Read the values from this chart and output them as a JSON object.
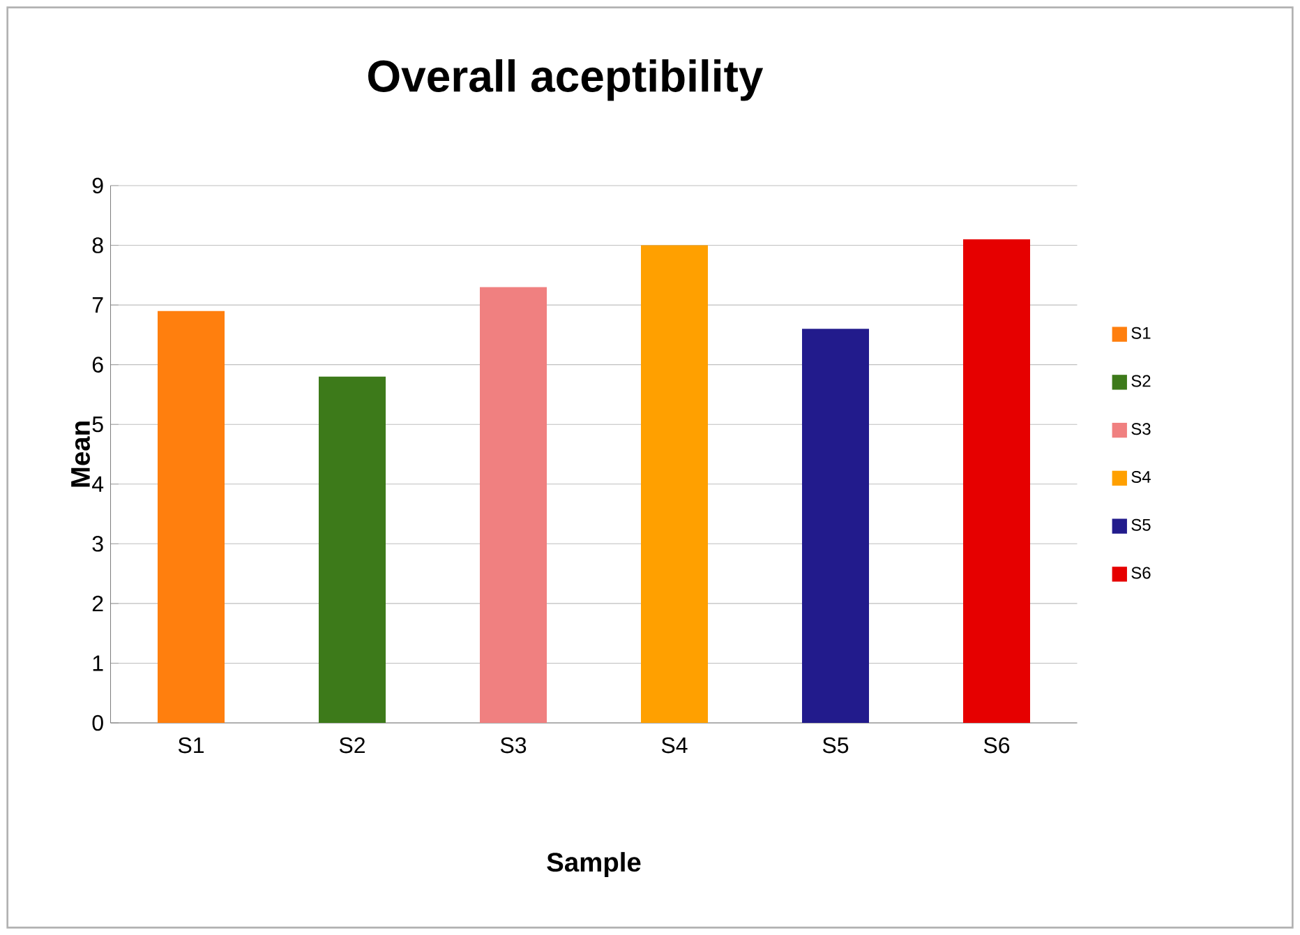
{
  "chart_data": {
    "type": "bar",
    "title": "Overall aceptibility",
    "xlabel": "Sample",
    "ylabel": "Mean",
    "categories": [
      "S1",
      "S2",
      "S3",
      "S4",
      "S5",
      "S6"
    ],
    "series": [
      {
        "name": "S1",
        "color": "#ff7f0e",
        "values": [
          6.9,
          null,
          null,
          null,
          null,
          null
        ]
      },
      {
        "name": "S2",
        "color": "#3d7a1a",
        "values": [
          null,
          5.8,
          null,
          null,
          null,
          null
        ]
      },
      {
        "name": "S3",
        "color": "#f08080",
        "values": [
          null,
          null,
          7.3,
          null,
          null,
          null
        ]
      },
      {
        "name": "S4",
        "color": "#ffa000",
        "values": [
          null,
          null,
          null,
          8.0,
          null,
          null
        ]
      },
      {
        "name": "S5",
        "color": "#221b8c",
        "values": [
          null,
          null,
          null,
          null,
          6.6,
          null
        ]
      },
      {
        "name": "S6",
        "color": "#e60000",
        "values": [
          null,
          null,
          null,
          null,
          null,
          8.1
        ]
      }
    ],
    "ylim": [
      0,
      9
    ],
    "yticks": [
      0,
      1,
      2,
      3,
      4,
      5,
      6,
      7,
      8,
      9
    ],
    "grid": "y",
    "legend": "right"
  }
}
